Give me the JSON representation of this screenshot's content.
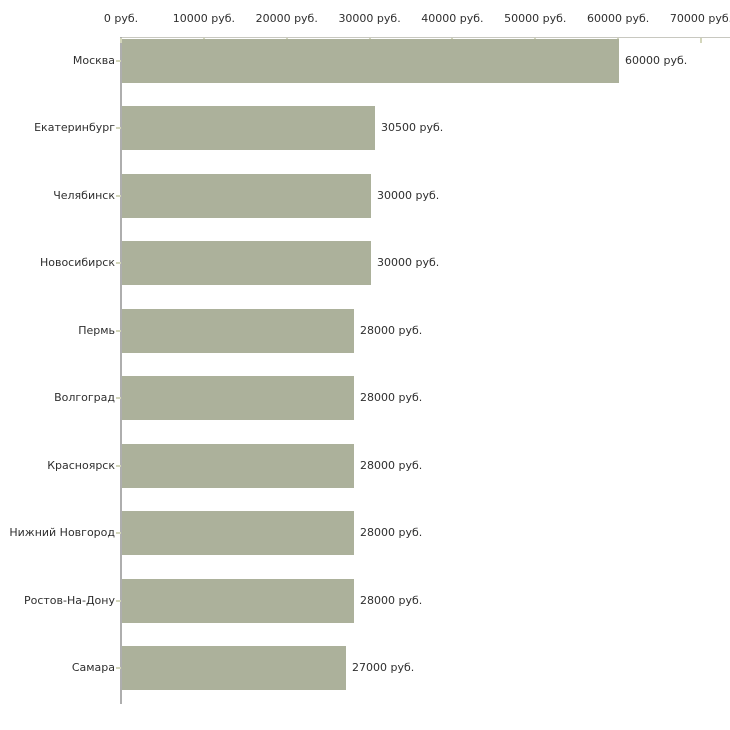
{
  "chart_data": {
    "type": "bar",
    "orientation": "horizontal",
    "title": "",
    "categories": [
      "Москва",
      "Екатеринбург",
      "Челябинск",
      "Новосибирск",
      "Пермь",
      "Волгоград",
      "Красноярск",
      "Нижний Новгород",
      "Ростов-На-Дону",
      "Самара"
    ],
    "values": [
      60000,
      30500,
      30000,
      30000,
      28000,
      28000,
      28000,
      28000,
      28000,
      27000
    ],
    "value_labels": [
      "60000 руб.",
      "30500 руб.",
      "30000 руб.",
      "30000 руб.",
      "28000 руб.",
      "28000 руб.",
      "28000 руб.",
      "28000 руб.",
      "28000 руб.",
      "27000 руб."
    ],
    "x_axis": {
      "position": "top",
      "range": [
        0,
        70000
      ],
      "ticks": [
        0,
        10000,
        20000,
        30000,
        40000,
        50000,
        60000,
        70000
      ],
      "tick_labels": [
        "0 руб.",
        "10000 руб.",
        "20000 руб.",
        "30000 руб.",
        "40000 руб.",
        "50000 руб.",
        "60000 руб.",
        "70000 руб."
      ]
    },
    "ylabel": "",
    "xlabel": "",
    "grid": false,
    "legend": "none",
    "colors": {
      "bar": "#acb19b",
      "axis_line_top": "#c8c8c0",
      "axis_line_left": "#aeaeae",
      "tick_mark": "#d3d6bb",
      "text": "#2f2f2f",
      "background": "#ffffff"
    }
  }
}
